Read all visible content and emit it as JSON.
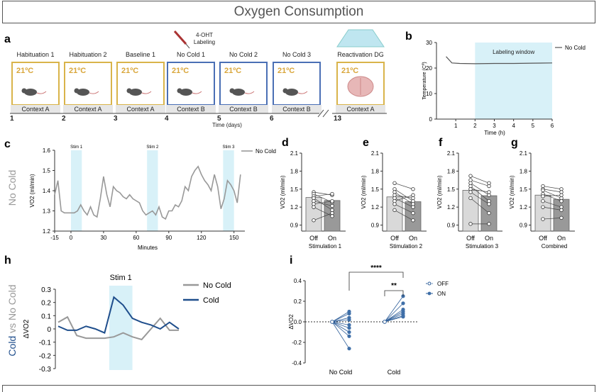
{
  "title": "Oxygen Consumption",
  "panels": {
    "a": {
      "letter": "a",
      "labeling": "4-OHT\nLabeling",
      "time_label": "Time (days)",
      "boxes": [
        {
          "label": "Habituation 1",
          "temp": "21ºC",
          "context": "Context A",
          "color": "#d9b44a"
        },
        {
          "label": "Habituation 2",
          "temp": "21ºC",
          "context": "Context A",
          "color": "#d9b44a"
        },
        {
          "label": "Baseline 1",
          "temp": "21ºC",
          "context": "Context A",
          "color": "#d9b44a"
        },
        {
          "label": "No Cold 1",
          "temp": "21ºC",
          "context": "Context B",
          "color": "#4a6fb5"
        },
        {
          "label": "No Cold 2",
          "temp": "21ºC",
          "context": "Context B",
          "color": "#4a6fb5"
        },
        {
          "label": "No Cold 3",
          "temp": "21ºC",
          "context": "Context B",
          "color": "#4a6fb5"
        },
        {
          "label": "Reactivation DG",
          "temp": "21ºC",
          "context": "Context A",
          "color": "#d9b44a"
        }
      ],
      "day_ticks": [
        "1",
        "2",
        "3",
        "4",
        "5",
        "6",
        "13"
      ]
    },
    "b": {
      "letter": "b"
    },
    "c": {
      "letter": "c",
      "side_label": "No Cold"
    },
    "d": {
      "letter": "d"
    },
    "e": {
      "letter": "e"
    },
    "f": {
      "letter": "f"
    },
    "g": {
      "letter": "g"
    },
    "h": {
      "letter": "h",
      "side_label_cold": "Cold",
      "side_label_vs": " vs ",
      "side_label_nocold": "No Cold"
    },
    "i": {
      "letter": "i"
    }
  },
  "chart_data": [
    {
      "id": "b",
      "type": "line",
      "xlabel": "Time (h)",
      "ylabel": "Temperature (Cº)",
      "xlim": [
        0,
        6
      ],
      "ylim": [
        0,
        30
      ],
      "xticks": [
        1,
        2,
        3,
        4,
        5,
        6
      ],
      "yticks": [
        0,
        10,
        20,
        30
      ],
      "shade": {
        "x0": 2,
        "x1": 6,
        "label": "Labeling window"
      },
      "series": [
        {
          "name": "No Cold",
          "color": "#555555",
          "x": [
            0.5,
            0.8,
            1.2,
            2,
            3,
            4,
            5,
            6
          ],
          "y": [
            24.5,
            22,
            21.8,
            21.7,
            21.8,
            21.8,
            21.9,
            22
          ]
        }
      ]
    },
    {
      "id": "c",
      "type": "line",
      "xlabel": "Minutes",
      "ylabel": "VO2 (ml/min)",
      "xlim": [
        -15,
        160
      ],
      "ylim": [
        1.2,
        1.6
      ],
      "xticks": [
        -15,
        0,
        30,
        60,
        90,
        120,
        150
      ],
      "yticks": [
        1.2,
        1.3,
        1.4,
        1.5,
        1.6
      ],
      "shades": [
        {
          "x0": 0,
          "x1": 10,
          "label": "Stim 1"
        },
        {
          "x0": 70,
          "x1": 80,
          "label": "Stim 2"
        },
        {
          "x0": 140,
          "x1": 150,
          "label": "Stim 3"
        }
      ],
      "series": [
        {
          "name": "No Cold",
          "color": "#999999",
          "x": [
            -15,
            -12,
            -9,
            -6,
            -3,
            0,
            3,
            6,
            9,
            12,
            15,
            18,
            21,
            24,
            27,
            30,
            33,
            36,
            39,
            42,
            45,
            48,
            51,
            54,
            57,
            60,
            63,
            66,
            69,
            72,
            75,
            78,
            81,
            84,
            87,
            90,
            93,
            96,
            99,
            102,
            105,
            108,
            111,
            114,
            117,
            120,
            123,
            126,
            129,
            132,
            135,
            138,
            141,
            144,
            147,
            150,
            153,
            156
          ],
          "y": [
            1.38,
            1.45,
            1.3,
            1.29,
            1.29,
            1.29,
            1.29,
            1.3,
            1.33,
            1.3,
            1.28,
            1.32,
            1.28,
            1.27,
            1.36,
            1.47,
            1.38,
            1.32,
            1.42,
            1.4,
            1.39,
            1.37,
            1.36,
            1.38,
            1.36,
            1.35,
            1.34,
            1.3,
            1.28,
            1.29,
            1.3,
            1.28,
            1.32,
            1.27,
            1.26,
            1.3,
            1.3,
            1.33,
            1.32,
            1.35,
            1.42,
            1.4,
            1.47,
            1.5,
            1.52,
            1.48,
            1.45,
            1.43,
            1.4,
            1.48,
            1.42,
            1.31,
            1.36,
            1.45,
            1.43,
            1.4,
            1.34,
            1.48
          ]
        }
      ]
    },
    {
      "id": "d",
      "type": "bar",
      "xlabel": "Stimulation 1",
      "ylabel": "VO2 (ml/min)",
      "ylim": [
        0.8,
        2.1
      ],
      "yticks": [
        0.9,
        1.2,
        1.5,
        1.8,
        2.1
      ],
      "categories": [
        "Off",
        "On"
      ],
      "values": [
        1.36,
        1.31
      ],
      "paired": {
        "off": [
          1.45,
          1.42,
          1.38,
          1.35,
          1.3,
          1.25,
          0.98,
          1.2
        ],
        "on": [
          1.4,
          1.28,
          1.42,
          1.15,
          1.22,
          1.3,
          1.1,
          1.05
        ]
      }
    },
    {
      "id": "e",
      "type": "bar",
      "xlabel": "Stimulation 2",
      "ylabel": "VO2 (ml/min)",
      "ylim": [
        0.8,
        2.1
      ],
      "yticks": [
        0.9,
        1.2,
        1.5,
        1.8,
        2.1
      ],
      "categories": [
        "Off",
        "On"
      ],
      "values": [
        1.37,
        1.29
      ],
      "paired": {
        "off": [
          1.6,
          1.5,
          1.45,
          1.4,
          1.35,
          1.3,
          1.25,
          1.15
        ],
        "on": [
          1.5,
          1.3,
          1.25,
          1.35,
          1.2,
          1.4,
          1.1,
          0.98
        ]
      }
    },
    {
      "id": "f",
      "type": "bar",
      "xlabel": "Stimulation 3",
      "ylabel": "VO2 (ml/min)",
      "ylim": [
        0.8,
        2.1
      ],
      "yticks": [
        0.9,
        1.2,
        1.5,
        1.8,
        2.1
      ],
      "categories": [
        "Off",
        "On"
      ],
      "values": [
        1.48,
        1.39
      ],
      "paired": {
        "off": [
          1.72,
          1.65,
          1.6,
          1.55,
          1.5,
          1.45,
          1.35,
          0.92
        ],
        "on": [
          1.6,
          1.55,
          1.4,
          1.3,
          1.45,
          1.25,
          1.1,
          0.92
        ]
      }
    },
    {
      "id": "g",
      "type": "bar",
      "xlabel": "Combined",
      "ylabel": "VO2 (ml/min)",
      "ylim": [
        0.8,
        2.1
      ],
      "yticks": [
        0.9,
        1.2,
        1.5,
        1.8,
        2.1
      ],
      "categories": [
        "Off",
        "On"
      ],
      "values": [
        1.4,
        1.33
      ],
      "paired": {
        "off": [
          1.55,
          1.5,
          1.48,
          1.42,
          1.38,
          1.3,
          1.2,
          1.0
        ],
        "on": [
          1.5,
          1.45,
          1.35,
          1.3,
          1.4,
          1.2,
          1.15,
          1.02
        ]
      }
    },
    {
      "id": "h",
      "type": "line",
      "ylabel": "ΔVO2",
      "ylim": [
        -0.3,
        0.3
      ],
      "yticks": [
        -0.3,
        -0.2,
        -0.1,
        0,
        0.1,
        0.2,
        0.3
      ],
      "xlim": [
        0,
        14
      ],
      "shade": {
        "x0": 5.5,
        "x1": 8,
        "label": "Stim 1"
      },
      "series": [
        {
          "name": "No Cold",
          "color": "#999999",
          "x": [
            0,
            1,
            2,
            3,
            4,
            5,
            6,
            7,
            8,
            9,
            10,
            11,
            12,
            13
          ],
          "y": [
            0.05,
            0.09,
            -0.05,
            -0.07,
            -0.07,
            -0.07,
            -0.06,
            -0.03,
            -0.06,
            -0.08,
            0.0,
            0.08,
            -0.01,
            -0.01
          ]
        },
        {
          "name": "Cold",
          "color": "#1f4e8c",
          "x": [
            0,
            1,
            2,
            3,
            4,
            5,
            6,
            7,
            8,
            9,
            10,
            11,
            12,
            13
          ],
          "y": [
            0.02,
            -0.01,
            -0.01,
            0.02,
            0.0,
            -0.03,
            0.24,
            0.18,
            0.08,
            0.05,
            0.03,
            0.0,
            0.05,
            0.0
          ]
        }
      ]
    },
    {
      "id": "i",
      "type": "scatter",
      "ylabel": "ΔVO2",
      "ylim": [
        -0.4,
        0.4
      ],
      "yticks": [
        -0.4,
        -0.2,
        0.0,
        0.2,
        0.4
      ],
      "categories": [
        "No Cold",
        "Cold"
      ],
      "legend": [
        "OFF",
        "ON"
      ],
      "significance": [
        "****",
        "**"
      ],
      "paired": {
        "nocold_on": [
          0.1,
          0.08,
          0.04,
          0.02,
          -0.03,
          -0.06,
          -0.1,
          -0.14,
          -0.26
        ],
        "cold_on": [
          0.25,
          0.18,
          0.12,
          0.1,
          0.08,
          0.06,
          0.05
        ]
      }
    }
  ]
}
